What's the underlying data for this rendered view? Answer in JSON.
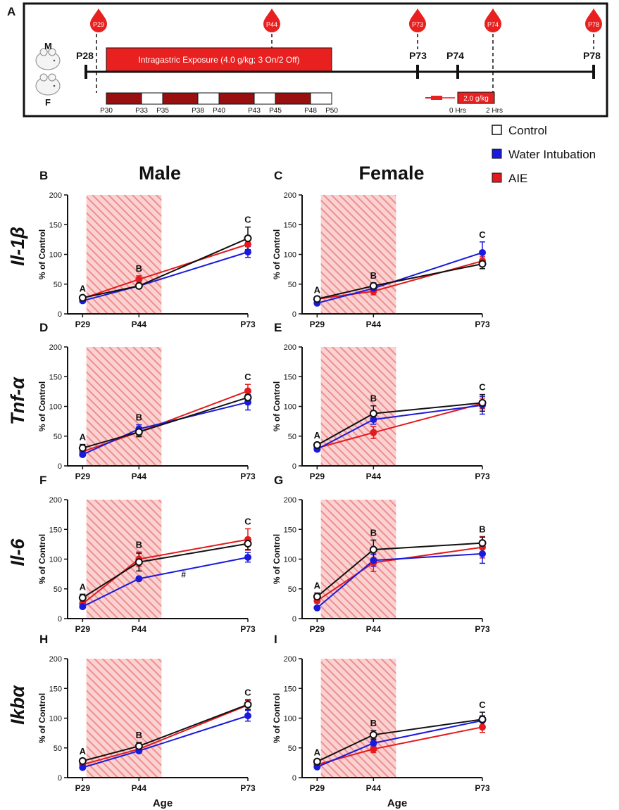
{
  "colors": {
    "control": "#111111",
    "water": "#1a1adc",
    "aie": "#e41a1c",
    "timeline_red": "#e82020",
    "block_dark": "#990f0f",
    "hatch": "#f29a9a"
  },
  "timeline": {
    "panel_label": "A",
    "sex_male": "M",
    "sex_female": "F",
    "drops": [
      "P29",
      "P44",
      "P73",
      "P74",
      "P78"
    ],
    "start_label": "P28",
    "marks": [
      "P73",
      "P74",
      "P78"
    ],
    "exposure_label": "Intragastric Exposure (4.0 g/kg; 3 On/2 Off)",
    "block_ticks": [
      "P30",
      "P33",
      "P35",
      "P38",
      "P40",
      "P43",
      "P45",
      "P48",
      "P50"
    ],
    "challenge_label": "2.0 g/kg",
    "challenge_times": [
      "0 Hrs",
      "2 Hrs"
    ]
  },
  "legend": {
    "items": [
      {
        "label": "Control",
        "key": "control"
      },
      {
        "label": "Water Intubation",
        "key": "water"
      },
      {
        "label": "AIE",
        "key": "aie"
      }
    ]
  },
  "headers": {
    "male": "Male",
    "female": "Female"
  },
  "row_labels": [
    "Il-1β",
    "Tnf-α",
    "Il-6",
    "Ikbα"
  ],
  "axis": {
    "ylabel": "% of Control",
    "xlabel": "Age"
  },
  "chart_data": [
    {
      "panel": "B",
      "type": "line",
      "title": "Il-1β Male",
      "categories": [
        "P29",
        "P44",
        "P73"
      ],
      "x": [
        29,
        44,
        73
      ],
      "xlim": [
        25,
        73
      ],
      "ylim": [
        0,
        200
      ],
      "yticks": [
        0,
        50,
        100,
        150,
        200
      ],
      "shaded_period": [
        30,
        50
      ],
      "letters": [
        "A",
        "B",
        "C"
      ],
      "annotations": [],
      "series": [
        {
          "name": "Control",
          "values": [
            27,
            47,
            127
          ],
          "errors": [
            3,
            4,
            19
          ]
        },
        {
          "name": "Water Intubation",
          "values": [
            22,
            47,
            104
          ],
          "errors": [
            2,
            3,
            9
          ]
        },
        {
          "name": "AIE",
          "values": [
            26,
            58,
            117
          ],
          "errors": [
            3,
            6,
            10
          ]
        }
      ]
    },
    {
      "panel": "C",
      "type": "line",
      "title": "Il-1β Female",
      "categories": [
        "P29",
        "P44",
        "P73"
      ],
      "x": [
        29,
        44,
        73
      ],
      "xlim": [
        25,
        73
      ],
      "ylim": [
        0,
        200
      ],
      "yticks": [
        0,
        50,
        100,
        150,
        200
      ],
      "shaded_period": [
        30,
        50
      ],
      "letters": [
        "A",
        "B",
        "C"
      ],
      "annotations": [],
      "series": [
        {
          "name": "Control",
          "values": [
            25,
            47,
            84
          ],
          "errors": [
            3,
            5,
            8
          ]
        },
        {
          "name": "Water Intubation",
          "values": [
            18,
            43,
            103
          ],
          "errors": [
            2,
            4,
            18
          ]
        },
        {
          "name": "AIE",
          "values": [
            25,
            38,
            89
          ],
          "errors": [
            3,
            6,
            7
          ]
        }
      ]
    },
    {
      "panel": "D",
      "type": "line",
      "title": "Tnf-α Male",
      "categories": [
        "P29",
        "P44",
        "P73"
      ],
      "x": [
        29,
        44,
        73
      ],
      "xlim": [
        25,
        73
      ],
      "ylim": [
        0,
        200
      ],
      "yticks": [
        0,
        50,
        100,
        150,
        200
      ],
      "shaded_period": [
        30,
        50
      ],
      "letters": [
        "A",
        "B",
        "C"
      ],
      "annotations": [],
      "series": [
        {
          "name": "Control",
          "values": [
            30,
            57,
            115
          ],
          "errors": [
            6,
            8,
            10
          ]
        },
        {
          "name": "Water Intubation",
          "values": [
            19,
            62,
            107
          ],
          "errors": [
            2,
            7,
            13
          ]
        },
        {
          "name": "AIE",
          "values": [
            24,
            57,
            126
          ],
          "errors": [
            4,
            6,
            11
          ]
        }
      ]
    },
    {
      "panel": "E",
      "type": "line",
      "title": "Tnf-α Female",
      "categories": [
        "P29",
        "P44",
        "P73"
      ],
      "x": [
        29,
        44,
        73
      ],
      "xlim": [
        25,
        73
      ],
      "ylim": [
        0,
        200
      ],
      "yticks": [
        0,
        50,
        100,
        150,
        200
      ],
      "shaded_period": [
        30,
        50
      ],
      "letters": [
        "A",
        "B",
        "C"
      ],
      "annotations": [],
      "series": [
        {
          "name": "Control",
          "values": [
            35,
            88,
            106
          ],
          "errors": [
            4,
            13,
            14
          ]
        },
        {
          "name": "Water Intubation",
          "values": [
            28,
            78,
            102
          ],
          "errors": [
            3,
            8,
            15
          ]
        },
        {
          "name": "AIE",
          "values": [
            30,
            56,
            105
          ],
          "errors": [
            4,
            10,
            9
          ]
        }
      ]
    },
    {
      "panel": "F",
      "type": "line",
      "title": "Il-6 Male",
      "categories": [
        "P29",
        "P44",
        "P73"
      ],
      "x": [
        29,
        44,
        73
      ],
      "xlim": [
        25,
        73
      ],
      "ylim": [
        0,
        200
      ],
      "yticks": [
        0,
        50,
        100,
        150,
        200
      ],
      "shaded_period": [
        30,
        50
      ],
      "letters": [
        "A",
        "B",
        "C"
      ],
      "annotations": [
        "#"
      ],
      "series": [
        {
          "name": "Control",
          "values": [
            35,
            95,
            126
          ],
          "errors": [
            6,
            15,
            10
          ]
        },
        {
          "name": "Water Intubation",
          "values": [
            20,
            67,
            103
          ],
          "errors": [
            2,
            3,
            8
          ]
        },
        {
          "name": "AIE",
          "values": [
            25,
            100,
            133
          ],
          "errors": [
            4,
            12,
            18
          ]
        }
      ]
    },
    {
      "panel": "G",
      "type": "line",
      "title": "Il-6 Female",
      "categories": [
        "P29",
        "P44",
        "P73"
      ],
      "x": [
        29,
        44,
        73
      ],
      "xlim": [
        25,
        73
      ],
      "ylim": [
        0,
        200
      ],
      "yticks": [
        0,
        50,
        100,
        150,
        200
      ],
      "shaded_period": [
        30,
        50
      ],
      "letters": [
        "A",
        "B",
        "B"
      ],
      "annotations": [],
      "series": [
        {
          "name": "Control",
          "values": [
            37,
            116,
            127
          ],
          "errors": [
            6,
            16,
            10
          ]
        },
        {
          "name": "Water Intubation",
          "values": [
            18,
            98,
            109
          ],
          "errors": [
            2,
            10,
            16
          ]
        },
        {
          "name": "AIE",
          "values": [
            30,
            94,
            120
          ],
          "errors": [
            4,
            15,
            18
          ]
        }
      ]
    },
    {
      "panel": "H",
      "type": "line",
      "title": "Ikbα Male",
      "categories": [
        "P29",
        "P44",
        "P73"
      ],
      "x": [
        29,
        44,
        73
      ],
      "xlim": [
        25,
        73
      ],
      "ylim": [
        0,
        200
      ],
      "yticks": [
        0,
        50,
        100,
        150,
        200
      ],
      "shaded_period": [
        30,
        50
      ],
      "letters": [
        "A",
        "B",
        "C"
      ],
      "annotations": [],
      "series": [
        {
          "name": "Control",
          "values": [
            28,
            53,
            123
          ],
          "errors": [
            4,
            6,
            8
          ]
        },
        {
          "name": "Water Intubation",
          "values": [
            17,
            45,
            104
          ],
          "errors": [
            2,
            3,
            9
          ]
        },
        {
          "name": "AIE",
          "values": [
            22,
            48,
            122
          ],
          "errors": [
            3,
            5,
            8
          ]
        }
      ]
    },
    {
      "panel": "I",
      "type": "line",
      "title": "Ikbα Female",
      "categories": [
        "P29",
        "P44",
        "P73"
      ],
      "x": [
        29,
        44,
        73
      ],
      "xlim": [
        25,
        73
      ],
      "ylim": [
        0,
        200
      ],
      "yticks": [
        0,
        50,
        100,
        150,
        200
      ],
      "shaded_period": [
        30,
        50
      ],
      "letters": [
        "A",
        "B",
        "C"
      ],
      "annotations": [],
      "series": [
        {
          "name": "Control",
          "values": [
            27,
            72,
            98
          ],
          "errors": [
            3,
            7,
            12
          ]
        },
        {
          "name": "Water Intubation",
          "values": [
            18,
            58,
            96
          ],
          "errors": [
            2,
            6,
            8
          ]
        },
        {
          "name": "AIE",
          "values": [
            22,
            48,
            85
          ],
          "errors": [
            3,
            6,
            9
          ]
        }
      ]
    }
  ]
}
